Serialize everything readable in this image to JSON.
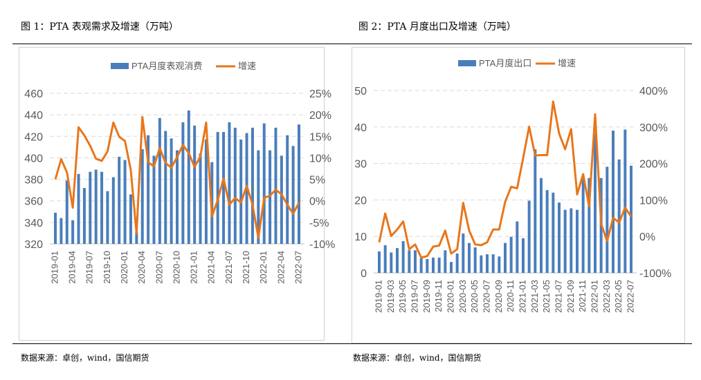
{
  "figure1": {
    "title": "图 1：PTA 表观需求及增速（万吨）",
    "source": "数据来源：卓创，wind，国信期货"
  },
  "figure2": {
    "title": "图 2：PTA 月度出口及增速（万吨）",
    "source": "数据来源：卓创，wind，国信期货"
  },
  "colors": {
    "bar": "#4a7ebb",
    "line": "#e8761a",
    "grid": "#d9d9d9",
    "axis_text": "#595959"
  },
  "chart_data": [
    {
      "type": "bar+line",
      "legend": [
        "PTA月度表观消费",
        "增速"
      ],
      "legend_position": "top",
      "grid": true,
      "months": [
        "2019-01",
        "2019-02",
        "2019-03",
        "2019-04",
        "2019-05",
        "2019-06",
        "2019-07",
        "2019-08",
        "2019-09",
        "2019-10",
        "2019-11",
        "2019-12",
        "2020-01",
        "2020-02",
        "2020-03",
        "2020-04",
        "2020-05",
        "2020-06",
        "2020-07",
        "2020-08",
        "2020-09",
        "2020-10",
        "2020-11",
        "2020-12",
        "2021-01",
        "2021-02",
        "2021-03",
        "2021-04",
        "2021-05",
        "2021-06",
        "2021-07",
        "2021-08",
        "2021-09",
        "2021-10",
        "2021-11",
        "2021-12",
        "2022-01",
        "2022-02",
        "2022-03",
        "2022-04",
        "2022-05",
        "2022-06",
        "2022-07"
      ],
      "x_tick_labels": [
        "2019-01",
        "2019-04",
        "2019-07",
        "2019-10",
        "2020-01",
        "2020-04",
        "2020-07",
        "2020-10",
        "2021-01",
        "2021-04",
        "2021-07",
        "2021-10",
        "2022-01",
        "2022-04",
        "2022-07"
      ],
      "series": [
        {
          "name": "PTA月度表观消费",
          "type": "bar",
          "axis": "left",
          "values": [
            349,
            344,
            379,
            342,
            385,
            372,
            387,
            389,
            387,
            369,
            382,
            401,
            398,
            366,
            331,
            408,
            421,
            402,
            437,
            425,
            418,
            407,
            433,
            444,
            430,
            404,
            417,
            396,
            424,
            424,
            433,
            428,
            417,
            423,
            428,
            407,
            432,
            407,
            428,
            402,
            421,
            411,
            431
          ]
        },
        {
          "name": "增速",
          "type": "line",
          "axis": "right",
          "unit": "%",
          "values": [
            5.0,
            9.7,
            6.6,
            -1.6,
            17.1,
            15.2,
            12.8,
            9.8,
            9.3,
            11.5,
            18.2,
            14.9,
            13.9,
            7.2,
            -7.6,
            19.5,
            9.0,
            8.0,
            12.3,
            8.8,
            7.7,
            10.2,
            13.0,
            11.1,
            7.9,
            10.3,
            18.2,
            -3.6,
            0.2,
            5.2,
            -0.9,
            0.7,
            -0.4,
            3.5,
            -0.9,
            -8.6,
            0.7,
            1.2,
            2.6,
            1.5,
            -0.9,
            -3.0,
            -0.4
          ]
        }
      ],
      "left_axis": {
        "min": 320,
        "max": 460,
        "ticks": [
          "320",
          "340",
          "360",
          "380",
          "400",
          "420",
          "440",
          "460"
        ]
      },
      "right_axis": {
        "min": -10,
        "max": 25,
        "ticks": [
          "-10%",
          "-5%",
          "0%",
          "5%",
          "10%",
          "15%",
          "20%",
          "25%"
        ]
      }
    },
    {
      "type": "bar+line",
      "legend": [
        "PTA月度出口",
        "增速"
      ],
      "legend_position": "top",
      "grid": true,
      "months": [
        "2019-01",
        "2019-02",
        "2019-03",
        "2019-04",
        "2019-05",
        "2019-06",
        "2019-07",
        "2019-08",
        "2019-09",
        "2019-10",
        "2019-11",
        "2019-12",
        "2020-01",
        "2020-02",
        "2020-03",
        "2020-04",
        "2020-05",
        "2020-06",
        "2020-07",
        "2020-08",
        "2020-09",
        "2020-10",
        "2020-11",
        "2020-12",
        "2021-01",
        "2021-02",
        "2021-03",
        "2021-04",
        "2021-05",
        "2021-06",
        "2021-07",
        "2021-08",
        "2021-09",
        "2021-10",
        "2021-11",
        "2021-12",
        "2022-01",
        "2022-02",
        "2022-03",
        "2022-04",
        "2022-05",
        "2022-06",
        "2022-07"
      ],
      "x_tick_labels": [
        "2019-01",
        "2019-03",
        "2019-05",
        "2019-07",
        "2019-09",
        "2019-11",
        "2020-01",
        "2020-03",
        "2020-05",
        "2020-07",
        "2020-09",
        "2020-11",
        "2021-01",
        "2021-03",
        "2021-05",
        "2021-07",
        "2021-09",
        "2021-11",
        "2022-01",
        "2022-03",
        "2022-05",
        "2022-07"
      ],
      "series": [
        {
          "name": "PTA月度出口",
          "type": "bar",
          "axis": "left",
          "values": [
            5.9,
            7.6,
            5.6,
            6.8,
            8.7,
            6.2,
            6.2,
            4.0,
            3.8,
            4.2,
            4.2,
            6.2,
            3.0,
            5.3,
            10.8,
            8.2,
            7.0,
            4.8,
            5.1,
            5.1,
            4.5,
            8.2,
            9.9,
            14.1,
            9.5,
            19.8,
            33.9,
            26.0,
            22.7,
            22.0,
            19.3,
            17.3,
            17.7,
            17.3,
            26.5,
            26.0,
            38.2,
            26.0,
            29.1,
            39.0,
            31.1,
            39.3,
            29.4
          ]
        },
        {
          "name": "增速",
          "type": "line",
          "axis": "right",
          "unit": "%",
          "values": [
            -16,
            63,
            1,
            19,
            41,
            -35,
            -22,
            -58,
            -54,
            -28,
            -25,
            16,
            -47,
            -35,
            92,
            16,
            -22,
            -24,
            -16,
            19,
            19,
            95,
            136,
            132,
            215,
            301,
            222,
            223,
            223,
            370,
            282,
            239,
            294,
            115,
            171,
            82,
            335,
            35,
            -13,
            51,
            38,
            79,
            54
          ]
        }
      ],
      "left_axis": {
        "min": 0,
        "max": 50,
        "ticks": [
          "0",
          "10",
          "20",
          "30",
          "40",
          "50"
        ]
      },
      "right_axis": {
        "min": -100,
        "max": 400,
        "ticks": [
          "-100%",
          "0%",
          "100%",
          "200%",
          "300%",
          "400%"
        ]
      }
    }
  ]
}
